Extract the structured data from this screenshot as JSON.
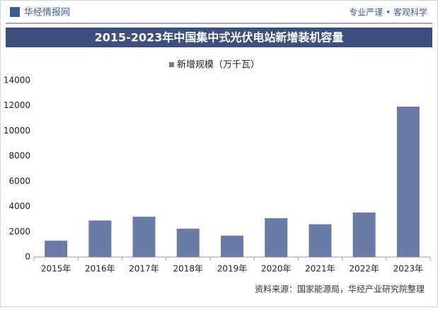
{
  "header": {
    "brand": "华经情报网",
    "slogan": "专业严谨 • 客观科学"
  },
  "chart_data": {
    "type": "bar",
    "title": "2015-2023年中国集中式光伏电站新增装机容量",
    "categories": [
      "2015年",
      "2016年",
      "2017年",
      "2018年",
      "2019年",
      "2020年",
      "2021年",
      "2022年",
      "2023年"
    ],
    "series": [
      {
        "name": "新增规模（万千瓦）",
        "color": "#6a7ba6",
        "values": [
          1300,
          2900,
          3200,
          2250,
          1700,
          3080,
          2600,
          3530,
          11930
        ]
      }
    ],
    "ylim": [
      0,
      14000
    ],
    "yticks": [
      0,
      2000,
      4000,
      6000,
      8000,
      10000,
      12000,
      14000
    ],
    "grid": false,
    "legend": "top"
  },
  "source": "资料来源：国家能源局，华经产业研究院整理"
}
